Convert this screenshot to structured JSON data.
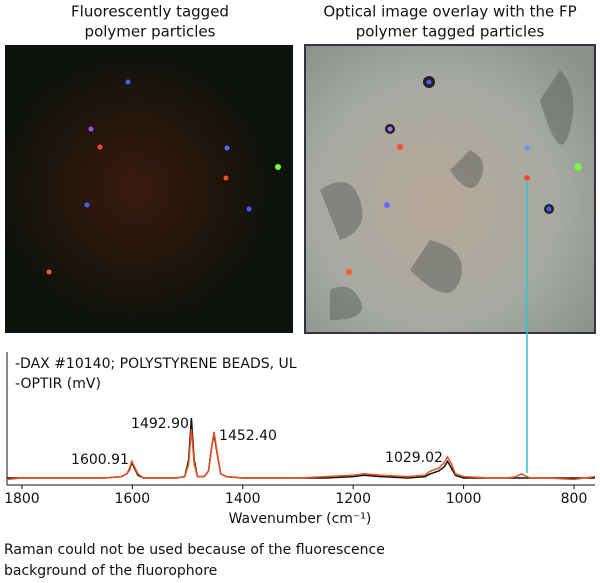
{
  "panels": [
    {
      "title_lines": [
        "Fluorescently tagged",
        "polymer particles"
      ]
    },
    {
      "title_lines": [
        "Optical image overlay with the FP",
        "polymer tagged particles"
      ]
    }
  ],
  "chart_data": {
    "type": "line",
    "x_label": "Wavenumber (cm⁻¹)",
    "xlim": [
      1827,
      762
    ],
    "xticks": [
      1800,
      1600,
      1400,
      1200,
      1000,
      800
    ],
    "ylim": [
      0,
      100
    ],
    "x": [
      1827,
      1800,
      1750,
      1700,
      1650,
      1620,
      1610,
      1605,
      1601,
      1596,
      1590,
      1580,
      1550,
      1520,
      1505,
      1498,
      1493,
      1488,
      1482,
      1470,
      1462,
      1456,
      1452,
      1447,
      1440,
      1430,
      1400,
      1350,
      1300,
      1250,
      1200,
      1180,
      1150,
      1100,
      1070,
      1060,
      1045,
      1035,
      1029,
      1022,
      1015,
      1000,
      950,
      920,
      905,
      895,
      880,
      850,
      800,
      762
    ],
    "series": [
      {
        "name": "-DAX #10140; POLYSTYRENE BEADS, UL",
        "color": "#e8501f",
        "values": [
          4,
          5,
          5,
          5,
          5,
          6,
          8,
          12,
          17,
          13,
          8,
          5,
          5,
          5,
          6,
          15,
          40,
          15,
          6,
          6,
          10,
          28,
          38,
          25,
          8,
          6,
          5,
          5,
          5,
          6,
          7,
          8,
          7,
          6,
          7,
          10,
          12,
          16,
          20,
          15,
          8,
          6,
          5,
          5,
          6,
          8,
          5,
          5,
          4,
          6
        ]
      },
      {
        "name": "-OPTIR (mV)",
        "color": "#111111",
        "values": [
          5,
          5,
          5,
          5,
          5,
          6,
          8,
          11,
          16,
          12,
          7,
          5,
          5,
          5,
          6,
          18,
          48,
          18,
          6,
          6,
          10,
          28,
          36,
          24,
          8,
          6,
          5,
          5,
          5,
          5,
          6,
          7,
          6,
          5,
          6,
          8,
          10,
          13,
          17,
          12,
          7,
          5,
          5,
          5,
          5,
          5,
          5,
          5,
          5,
          5
        ]
      }
    ],
    "annotations": [
      "1600.91",
      "1492.90",
      "1452.40",
      "1029.02"
    ]
  },
  "caption_lines": [
    "Raman could not be used because of the fluorescence",
    "background of the fluorophore"
  ]
}
